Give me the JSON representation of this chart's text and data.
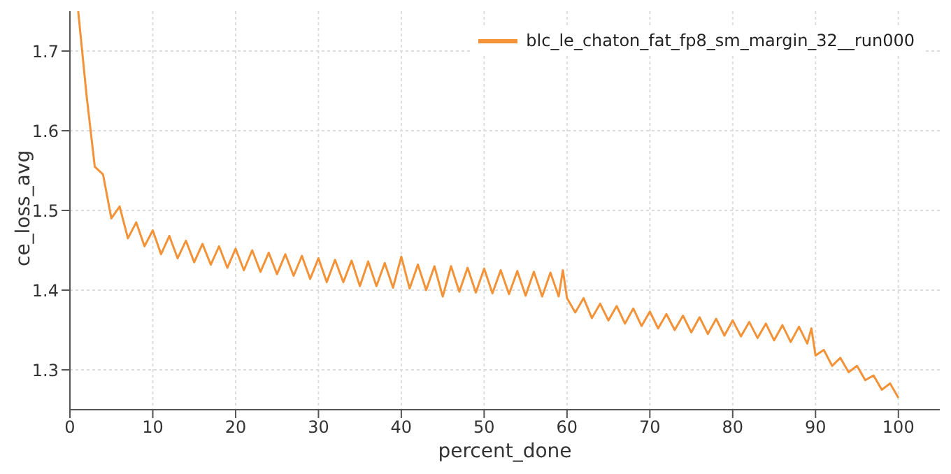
{
  "chart_data": {
    "type": "line",
    "xlabel": "percent_done",
    "ylabel": "ce_loss_avg",
    "x": [
      1,
      2,
      3,
      4,
      5,
      6,
      7,
      8,
      9,
      10,
      11,
      12,
      13,
      14,
      15,
      16,
      17,
      18,
      19,
      20,
      21,
      22,
      23,
      24,
      25,
      26,
      27,
      28,
      29,
      30,
      31,
      32,
      33,
      34,
      35,
      36,
      37,
      38,
      39,
      40,
      41,
      42,
      43,
      44,
      45,
      46,
      47,
      48,
      49,
      50,
      51,
      52,
      53,
      54,
      55,
      56,
      57,
      58,
      59,
      59.5,
      60,
      61,
      62,
      63,
      64,
      65,
      66,
      67,
      68,
      69,
      70,
      71,
      72,
      73,
      74,
      75,
      76,
      77,
      78,
      79,
      80,
      81,
      82,
      83,
      84,
      85,
      86,
      87,
      88,
      89,
      89.5,
      90,
      91,
      92,
      93,
      94,
      95,
      96,
      97,
      98,
      99,
      100
    ],
    "series": [
      {
        "name": "blc_le_chaton_fat_fp8_sm_margin_32__run000",
        "color": "#f39237",
        "values": [
          1.75,
          1.645,
          1.555,
          1.545,
          1.49,
          1.505,
          1.465,
          1.485,
          1.455,
          1.475,
          1.445,
          1.468,
          1.44,
          1.462,
          1.435,
          1.458,
          1.432,
          1.455,
          1.428,
          1.452,
          1.425,
          1.45,
          1.423,
          1.447,
          1.42,
          1.445,
          1.418,
          1.443,
          1.414,
          1.44,
          1.41,
          1.438,
          1.41,
          1.437,
          1.405,
          1.436,
          1.405,
          1.434,
          1.403,
          1.442,
          1.402,
          1.432,
          1.4,
          1.43,
          1.392,
          1.43,
          1.398,
          1.428,
          1.397,
          1.427,
          1.396,
          1.425,
          1.395,
          1.424,
          1.393,
          1.423,
          1.392,
          1.422,
          1.392,
          1.425,
          1.39,
          1.372,
          1.39,
          1.365,
          1.383,
          1.362,
          1.38,
          1.358,
          1.377,
          1.355,
          1.373,
          1.352,
          1.37,
          1.35,
          1.368,
          1.347,
          1.366,
          1.345,
          1.364,
          1.343,
          1.362,
          1.342,
          1.36,
          1.34,
          1.358,
          1.337,
          1.356,
          1.335,
          1.354,
          1.333,
          1.352,
          1.318,
          1.325,
          1.305,
          1.315,
          1.297,
          1.305,
          1.287,
          1.293,
          1.275,
          1.283,
          1.265
        ]
      }
    ],
    "xlim": [
      0,
      105
    ],
    "xticks": [
      0,
      10,
      20,
      30,
      40,
      50,
      60,
      70,
      80,
      90,
      100
    ],
    "ylim": [
      1.25,
      1.75
    ],
    "yticks": [
      1.3,
      1.4,
      1.5,
      1.6,
      1.7
    ],
    "grid": true,
    "legend": "top right",
    "marker": "none",
    "line_style": "solid"
  }
}
